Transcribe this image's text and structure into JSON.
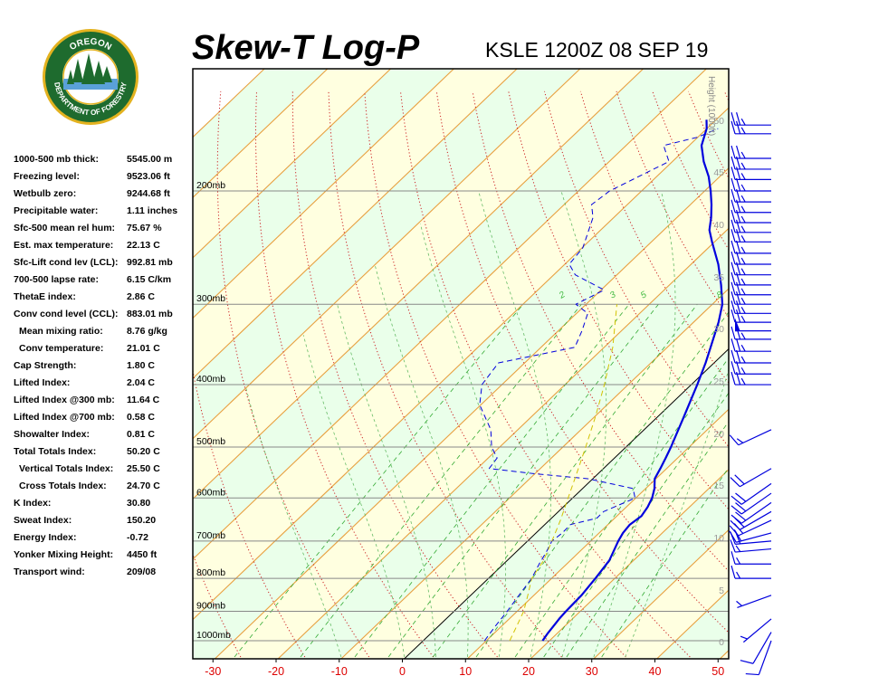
{
  "header": {
    "title": "Skew-T Log-P",
    "station_time": "KSLE 1200Z 08 SEP 19"
  },
  "logo": {
    "text_top": "OREGON",
    "text_bottom": "DEPARTMENT OF FORESTRY",
    "ring_color": "#1e6b2e",
    "gold_color": "#e3b21f"
  },
  "indices": [
    {
      "label": "1000-500 mb thick:",
      "value": "5545.00 m",
      "indent": false
    },
    {
      "label": "Freezing level:",
      "value": "9523.06 ft",
      "indent": false
    },
    {
      "label": "Wetbulb zero:",
      "value": "9244.68 ft",
      "indent": false
    },
    {
      "label": "Precipitable water:",
      "value": "1.11 inches",
      "indent": false
    },
    {
      "label": "Sfc-500 mean rel hum:",
      "value": "75.67 %",
      "indent": false
    },
    {
      "label": "Est. max temperature:",
      "value": "22.13 C",
      "indent": false
    },
    {
      "label": "Sfc-Lift cond lev (LCL):",
      "value": "992.81 mb",
      "indent": false
    },
    {
      "label": "700-500 lapse rate:",
      "value": "6.15 C/km",
      "indent": false
    },
    {
      "label": "ThetaE index:",
      "value": "2.86 C",
      "indent": false
    },
    {
      "label": "Conv cond level (CCL):",
      "value": "883.01 mb",
      "indent": false
    },
    {
      "label": "Mean mixing ratio:",
      "value": "8.76 g/kg",
      "indent": true
    },
    {
      "label": "Conv temperature:",
      "value": "21.01 C",
      "indent": true
    },
    {
      "label": "Cap Strength:",
      "value": "1.80 C",
      "indent": false
    },
    {
      "label": "Lifted Index:",
      "value": "2.04 C",
      "indent": false
    },
    {
      "label": "Lifted Index @300 mb:",
      "value": "11.64 C",
      "indent": false
    },
    {
      "label": "Lifted Index @700 mb:",
      "value": "0.58 C",
      "indent": false
    },
    {
      "label": "Showalter Index:",
      "value": "0.81 C",
      "indent": false
    },
    {
      "label": "Total Totals Index:",
      "value": "50.20 C",
      "indent": false
    },
    {
      "label": "Vertical Totals Index:",
      "value": "25.50 C",
      "indent": true
    },
    {
      "label": "Cross Totals Index:",
      "value": "24.70 C",
      "indent": true
    },
    {
      "label": "K Index:",
      "value": "30.80",
      "indent": false
    },
    {
      "label": "Sweat Index:",
      "value": "150.20",
      "indent": false
    },
    {
      "label": "Energy Index:",
      "value": "-0.72",
      "indent": false
    },
    {
      "label": "Yonker Mixing Height:",
      "value": "4450 ft",
      "indent": false
    },
    {
      "label": "Transport wind:",
      "value": "209/08",
      "indent": false
    }
  ],
  "chart_data": {
    "type": "line",
    "title": "Skew-T Log-P",
    "x_axis": {
      "ticks": [
        -30,
        -20,
        -10,
        0,
        10,
        20,
        30,
        40,
        50
      ],
      "range": [
        -33,
        50
      ],
      "unit": "C",
      "tick_color": "#dd0000"
    },
    "y_axis": {
      "scale": "log-pressure",
      "range_mb": [
        1060,
        150
      ],
      "pressure_labels": [
        "200mb",
        "300mb",
        "400mb",
        "500mb",
        "600mb",
        "700mb",
        "800mb",
        "900mb",
        "1000mb"
      ],
      "pressure_values": [
        200,
        300,
        400,
        500,
        600,
        700,
        800,
        900,
        1000
      ]
    },
    "height_axis": {
      "label": "Height (1000ft)",
      "ticks": [
        0,
        5,
        10,
        15,
        20,
        25,
        30,
        35,
        40,
        45,
        50
      ]
    },
    "mixing_ratio_labels": [
      "2",
      "3",
      "5",
      "8"
    ],
    "background": {
      "band_light": "#eaffea",
      "band_alt": "#ffffe0"
    },
    "series": [
      {
        "role": "temperature",
        "color": "#0000dd",
        "style": "solid",
        "points": [
          [
            1000,
            19.2
          ],
          [
            975,
            18.8
          ],
          [
            950,
            18.5
          ],
          [
            925,
            18.2
          ],
          [
            900,
            18.0
          ],
          [
            850,
            17.8
          ],
          [
            800,
            17.2
          ],
          [
            750,
            16.4
          ],
          [
            700,
            14.6
          ],
          [
            680,
            14.0
          ],
          [
            660,
            13.7
          ],
          [
            640,
            14.1
          ],
          [
            620,
            13.6
          ],
          [
            600,
            12.8
          ],
          [
            580,
            11.6
          ],
          [
            560,
            10.0
          ],
          [
            540,
            9.2
          ],
          [
            520,
            8.3
          ],
          [
            500,
            7.3
          ],
          [
            450,
            4.4
          ],
          [
            400,
            1.1
          ],
          [
            370,
            -1.2
          ],
          [
            350,
            -3.0
          ],
          [
            320,
            -5.9
          ],
          [
            300,
            -8.3
          ],
          [
            280,
            -11.7
          ],
          [
            260,
            -15.6
          ],
          [
            240,
            -20.3
          ],
          [
            230,
            -22.7
          ],
          [
            220,
            -24.5
          ],
          [
            210,
            -26.6
          ],
          [
            200,
            -29.0
          ],
          [
            190,
            -31.7
          ],
          [
            180,
            -35.0
          ],
          [
            170,
            -38.0
          ],
          [
            160,
            -40.0
          ],
          [
            155,
            -41.5
          ]
        ]
      },
      {
        "role": "dewpoint",
        "color": "#0000dd",
        "style": "dashed",
        "points": [
          [
            1000,
            10.0
          ],
          [
            950,
            9.3
          ],
          [
            900,
            8.7
          ],
          [
            850,
            7.9
          ],
          [
            800,
            7.1
          ],
          [
            760,
            5.9
          ],
          [
            730,
            5.1
          ],
          [
            700,
            4.1
          ],
          [
            680,
            4.4
          ],
          [
            660,
            4.3
          ],
          [
            645,
            7.4
          ],
          [
            630,
            7.4
          ],
          [
            610,
            9.2
          ],
          [
            600,
            10.1
          ],
          [
            580,
            8.2
          ],
          [
            560,
            -0.6
          ],
          [
            550,
            -10.0
          ],
          [
            540,
            -17.9
          ],
          [
            520,
            -18.4
          ],
          [
            500,
            -21.1
          ],
          [
            470,
            -24.1
          ],
          [
            430,
            -30.0
          ],
          [
            400,
            -33.0
          ],
          [
            370,
            -34.0
          ],
          [
            350,
            -24.5
          ],
          [
            330,
            -26.1
          ],
          [
            310,
            -28.1
          ],
          [
            300,
            -31.5
          ],
          [
            285,
            -29.4
          ],
          [
            270,
            -36.5
          ],
          [
            260,
            -39.2
          ],
          [
            245,
            -39.8
          ],
          [
            220,
            -43.2
          ],
          [
            210,
            -45.6
          ],
          [
            200,
            -45.0
          ],
          [
            180,
            -40.5
          ],
          [
            170,
            -44.0
          ],
          [
            165,
            -40.0
          ],
          [
            160,
            -38.2
          ]
        ]
      },
      {
        "role": "parcel",
        "color": "#d2c200",
        "style": "dashed",
        "points": [
          [
            1000,
            14.0
          ],
          [
            950,
            12.7
          ],
          [
            900,
            11.3
          ],
          [
            850,
            9.3
          ],
          [
            800,
            7.1
          ],
          [
            750,
            6.0
          ],
          [
            700,
            4.1
          ],
          [
            650,
            2.0
          ],
          [
            600,
            -0.5
          ],
          [
            550,
            -3.2
          ],
          [
            500,
            -6.2
          ],
          [
            450,
            -9.6
          ],
          [
            400,
            -13.6
          ],
          [
            350,
            -18.5
          ],
          [
            300,
            -25.0
          ]
        ]
      }
    ]
  },
  "wind_barbs": {
    "color": "#0000dd",
    "barbs": [
      {
        "pressure_mb": 1000,
        "dir_deg": 200,
        "speed_kt": 10
      },
      {
        "pressure_mb": 970,
        "dir_deg": 210,
        "speed_kt": 10
      },
      {
        "pressure_mb": 925,
        "dir_deg": 230,
        "speed_kt": 5
      },
      {
        "pressure_mb": 850,
        "dir_deg": 250,
        "speed_kt": 5
      },
      {
        "pressure_mb": 800,
        "dir_deg": 270,
        "speed_kt": 15
      },
      {
        "pressure_mb": 760,
        "dir_deg": 270,
        "speed_kt": 15
      },
      {
        "pressure_mb": 720,
        "dir_deg": 265,
        "speed_kt": 15
      },
      {
        "pressure_mb": 700,
        "dir_deg": 265,
        "speed_kt": 20
      },
      {
        "pressure_mb": 680,
        "dir_deg": 255,
        "speed_kt": 20
      },
      {
        "pressure_mb": 650,
        "dir_deg": 245,
        "speed_kt": 20
      },
      {
        "pressure_mb": 630,
        "dir_deg": 240,
        "speed_kt": 20
      },
      {
        "pressure_mb": 610,
        "dir_deg": 235,
        "speed_kt": 20
      },
      {
        "pressure_mb": 590,
        "dir_deg": 235,
        "speed_kt": 20
      },
      {
        "pressure_mb": 570,
        "dir_deg": 235,
        "speed_kt": 20
      },
      {
        "pressure_mb": 540,
        "dir_deg": 240,
        "speed_kt": 20
      },
      {
        "pressure_mb": 470,
        "dir_deg": 245,
        "speed_kt": 15
      },
      {
        "pressure_mb": 400,
        "dir_deg": 270,
        "speed_kt": 25
      },
      {
        "pressure_mb": 385,
        "dir_deg": 270,
        "speed_kt": 25
      },
      {
        "pressure_mb": 370,
        "dir_deg": 270,
        "speed_kt": 25
      },
      {
        "pressure_mb": 355,
        "dir_deg": 270,
        "speed_kt": 25
      },
      {
        "pressure_mb": 340,
        "dir_deg": 270,
        "speed_kt": 25
      },
      {
        "pressure_mb": 330,
        "dir_deg": 270,
        "speed_kt": 50
      },
      {
        "pressure_mb": 320,
        "dir_deg": 270,
        "speed_kt": 25
      },
      {
        "pressure_mb": 310,
        "dir_deg": 270,
        "speed_kt": 25
      },
      {
        "pressure_mb": 300,
        "dir_deg": 270,
        "speed_kt": 25
      },
      {
        "pressure_mb": 290,
        "dir_deg": 270,
        "speed_kt": 25
      },
      {
        "pressure_mb": 280,
        "dir_deg": 270,
        "speed_kt": 25
      },
      {
        "pressure_mb": 270,
        "dir_deg": 270,
        "speed_kt": 25
      },
      {
        "pressure_mb": 260,
        "dir_deg": 270,
        "speed_kt": 25
      },
      {
        "pressure_mb": 250,
        "dir_deg": 270,
        "speed_kt": 25
      },
      {
        "pressure_mb": 240,
        "dir_deg": 270,
        "speed_kt": 25
      },
      {
        "pressure_mb": 232,
        "dir_deg": 270,
        "speed_kt": 25
      },
      {
        "pressure_mb": 224,
        "dir_deg": 270,
        "speed_kt": 25
      },
      {
        "pressure_mb": 216,
        "dir_deg": 270,
        "speed_kt": 25
      },
      {
        "pressure_mb": 208,
        "dir_deg": 270,
        "speed_kt": 25
      },
      {
        "pressure_mb": 200,
        "dir_deg": 270,
        "speed_kt": 25
      },
      {
        "pressure_mb": 192,
        "dir_deg": 270,
        "speed_kt": 25
      },
      {
        "pressure_mb": 185,
        "dir_deg": 270,
        "speed_kt": 25
      },
      {
        "pressure_mb": 178,
        "dir_deg": 270,
        "speed_kt": 25
      },
      {
        "pressure_mb": 163,
        "dir_deg": 270,
        "speed_kt": 25
      },
      {
        "pressure_mb": 158,
        "dir_deg": 270,
        "speed_kt": 25
      }
    ]
  }
}
